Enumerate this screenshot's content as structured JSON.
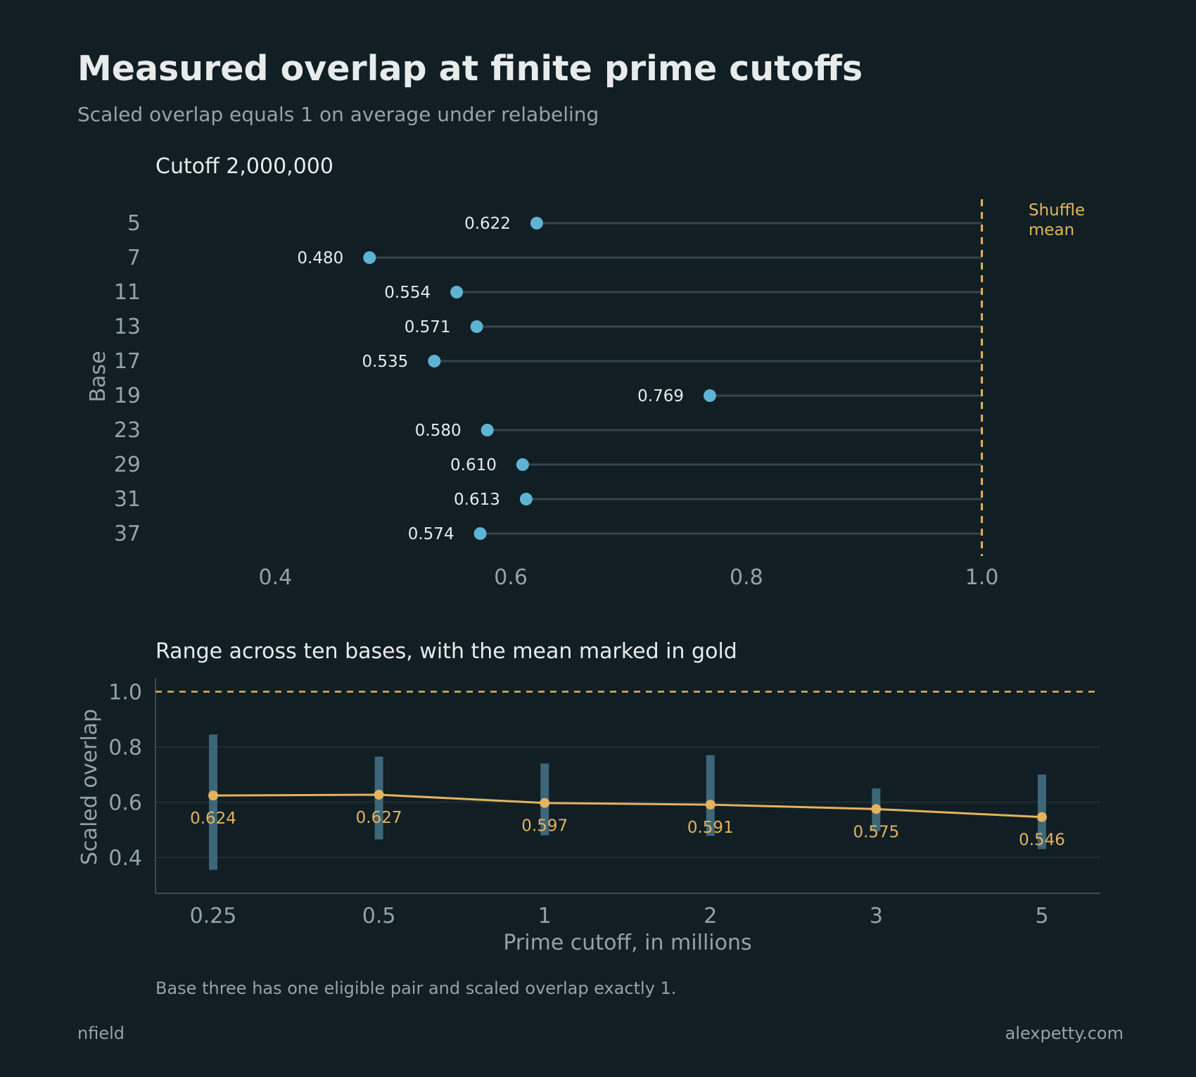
{
  "title": "Measured overlap at finite prime cutoffs",
  "subtitle": "Scaled overlap equals 1 on average under relabeling",
  "note": "Base three has one eligible pair and scaled overlap exactly 1.",
  "footer": {
    "left": "nfield",
    "right": "alexpetty.com"
  },
  "colors": {
    "background": "#111e24",
    "dot": "#5fb3d4",
    "gold": "#e3b35e",
    "range_bar": "#3d6678",
    "stem": "#34454d"
  },
  "chart_data": [
    {
      "type": "dot",
      "title": "Cutoff 2,000,000",
      "ylabel": "Base",
      "xlabel": "",
      "xlim": [
        0.3,
        1.1
      ],
      "xticks": [
        "0.4",
        "0.6",
        "0.8",
        "1.0"
      ],
      "reference": {
        "value": 1.0,
        "label_line1": "Shuffle",
        "label_line2": "mean"
      },
      "categories": [
        "5",
        "7",
        "11",
        "13",
        "17",
        "19",
        "23",
        "29",
        "31",
        "37"
      ],
      "values": [
        0.622,
        0.48,
        0.554,
        0.571,
        0.535,
        0.769,
        0.58,
        0.61,
        0.613,
        0.574
      ],
      "labels": [
        "0.622",
        "0.480",
        "0.554",
        "0.571",
        "0.535",
        "0.769",
        "0.580",
        "0.610",
        "0.613",
        "0.574"
      ]
    },
    {
      "type": "line",
      "title": "Range across ten bases, with the mean marked in gold",
      "xlabel": "Prime cutoff, in millions",
      "ylabel": "Scaled overlap",
      "ylim": [
        0.27,
        1.05
      ],
      "yticks": [
        "0.4",
        "0.6",
        "0.8",
        "1.0"
      ],
      "categories": [
        "0.25",
        "0.5",
        "1",
        "2",
        "3",
        "5"
      ],
      "mean": [
        0.624,
        0.627,
        0.597,
        0.591,
        0.575,
        0.546
      ],
      "mean_labels": [
        "0.624",
        "0.627",
        "0.597",
        "0.591",
        "0.575",
        "0.546"
      ],
      "range_min": [
        0.355,
        0.465,
        0.48,
        0.478,
        0.495,
        0.43
      ],
      "range_max": [
        0.845,
        0.765,
        0.74,
        0.77,
        0.65,
        0.7
      ],
      "reference": 1.0
    }
  ]
}
